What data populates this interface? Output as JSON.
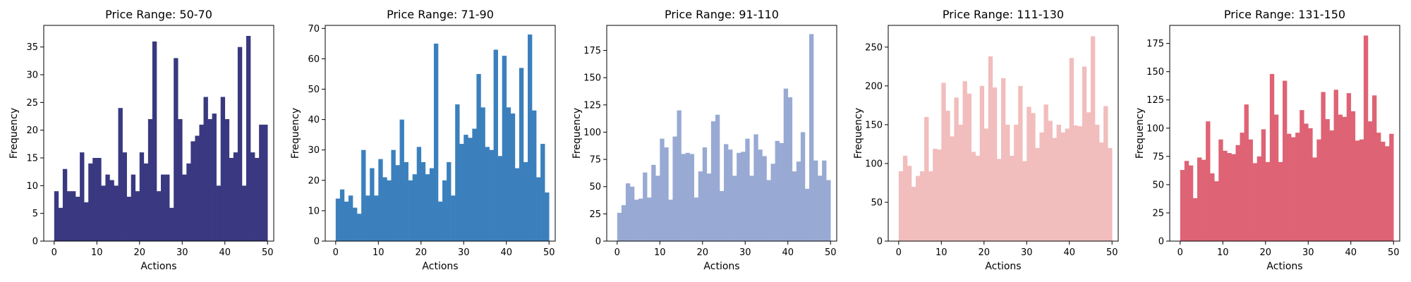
{
  "chart_data": [
    {
      "type": "bar",
      "title": "Price Range: 50-70",
      "xlabel": "Actions",
      "ylabel": "Frequency",
      "color": "#393880",
      "xlim": [
        -2.45,
        51.45
      ],
      "ylim": [
        0,
        38.9
      ],
      "xticks": [
        0,
        10,
        20,
        30,
        40,
        50
      ],
      "yticks": [
        0,
        5,
        10,
        15,
        20,
        25,
        30,
        35
      ],
      "bin_width": 1,
      "x": [
        0,
        1,
        2,
        3,
        4,
        5,
        6,
        7,
        8,
        9,
        10,
        11,
        12,
        13,
        14,
        15,
        16,
        17,
        18,
        19,
        20,
        21,
        22,
        23,
        24,
        25,
        26,
        27,
        28,
        29,
        30,
        31,
        32,
        33,
        34,
        35,
        36,
        37,
        38,
        39,
        40,
        41,
        42,
        43,
        44,
        45,
        46,
        47,
        48,
        49
      ],
      "values": [
        9,
        6,
        13,
        9,
        9,
        8,
        16,
        7,
        14,
        15,
        15,
        10,
        12,
        11,
        10,
        24,
        16,
        8,
        12,
        9,
        16,
        14,
        22,
        36,
        9,
        12,
        12,
        6,
        33,
        22,
        12,
        14,
        18,
        19,
        21,
        26,
        22,
        23,
        10,
        26,
        22,
        15,
        16,
        35,
        10,
        37,
        16,
        15,
        21,
        21
      ]
    },
    {
      "type": "bar",
      "title": "Price Range: 71-90",
      "xlabel": "Actions",
      "ylabel": "Frequency",
      "color": "#3b80bd",
      "xlim": [
        -2.45,
        51.45
      ],
      "ylim": [
        0,
        71
      ],
      "xticks": [
        0,
        10,
        20,
        30,
        40,
        50
      ],
      "yticks": [
        0,
        10,
        20,
        30,
        40,
        50,
        60,
        70
      ],
      "bin_width": 1,
      "x": [
        0,
        1,
        2,
        3,
        4,
        5,
        6,
        7,
        8,
        9,
        10,
        11,
        12,
        13,
        14,
        15,
        16,
        17,
        18,
        19,
        20,
        21,
        22,
        23,
        24,
        25,
        26,
        27,
        28,
        29,
        30,
        31,
        32,
        33,
        34,
        35,
        36,
        37,
        38,
        39,
        40,
        41,
        42,
        43,
        44,
        45,
        46,
        47,
        48,
        49
      ],
      "values": [
        14,
        17,
        13,
        15,
        11,
        9,
        30,
        15,
        24,
        15,
        27,
        21,
        20,
        30,
        25,
        40,
        26,
        20,
        22,
        31,
        26,
        22,
        24,
        65,
        13,
        20,
        26,
        15,
        45,
        32,
        35,
        34,
        37,
        55,
        44,
        31,
        30,
        63,
        28,
        61,
        44,
        42,
        24,
        57,
        26,
        68,
        43,
        21,
        32,
        16
      ]
    },
    {
      "type": "bar",
      "title": "Price Range: 91-110",
      "xlabel": "Actions",
      "ylabel": "Frequency",
      "color": "#98aad3",
      "xlim": [
        -2.45,
        51.45
      ],
      "ylim": [
        0,
        198
      ],
      "xticks": [
        0,
        10,
        20,
        30,
        40,
        50
      ],
      "yticks": [
        0,
        25,
        50,
        75,
        100,
        125,
        150,
        175
      ],
      "bin_width": 1,
      "x": [
        0,
        1,
        2,
        3,
        4,
        5,
        6,
        7,
        8,
        9,
        10,
        11,
        12,
        13,
        14,
        15,
        16,
        17,
        18,
        19,
        20,
        21,
        22,
        23,
        24,
        25,
        26,
        27,
        28,
        29,
        30,
        31,
        32,
        33,
        34,
        35,
        36,
        37,
        38,
        39,
        40,
        41,
        42,
        43,
        44,
        45,
        46,
        47,
        48,
        49
      ],
      "values": [
        26,
        33,
        53,
        50,
        38,
        39,
        63,
        40,
        70,
        60,
        94,
        86,
        38,
        96,
        120,
        80,
        81,
        80,
        40,
        64,
        86,
        62,
        110,
        116,
        46,
        89,
        84,
        60,
        81,
        82,
        94,
        60,
        98,
        84,
        78,
        56,
        71,
        92,
        90,
        140,
        132,
        64,
        73,
        100,
        48,
        190,
        74,
        60,
        74,
        56
      ]
    },
    {
      "type": "bar",
      "title": "Price Range: 111-130",
      "xlabel": "Actions",
      "ylabel": "Frequency",
      "color": "#f2bdbd",
      "xlim": [
        -2.45,
        51.45
      ],
      "ylim": [
        0,
        278
      ],
      "xticks": [
        0,
        10,
        20,
        30,
        40,
        50
      ],
      "yticks": [
        0,
        50,
        100,
        150,
        200,
        250
      ],
      "bin_width": 1,
      "x": [
        0,
        1,
        2,
        3,
        4,
        5,
        6,
        7,
        8,
        9,
        10,
        11,
        12,
        13,
        14,
        15,
        16,
        17,
        18,
        19,
        20,
        21,
        22,
        23,
        24,
        25,
        26,
        27,
        28,
        29,
        30,
        31,
        32,
        33,
        34,
        35,
        36,
        37,
        38,
        39,
        40,
        41,
        42,
        43,
        44,
        45,
        46,
        47,
        48,
        49
      ],
      "values": [
        90,
        110,
        97,
        70,
        84,
        90,
        160,
        90,
        119,
        118,
        204,
        168,
        135,
        185,
        150,
        206,
        190,
        115,
        110,
        200,
        145,
        238,
        198,
        106,
        210,
        150,
        110,
        150,
        200,
        103,
        173,
        165,
        120,
        140,
        176,
        155,
        133,
        150,
        140,
        145,
        236,
        149,
        148,
        225,
        166,
        264,
        150,
        127,
        174,
        120
      ]
    },
    {
      "type": "bar",
      "title": "Price Range: 131-150",
      "xlabel": "Actions",
      "ylabel": "Frequency",
      "color": "#de6374",
      "xlim": [
        -2.45,
        51.45
      ],
      "ylim": [
        0,
        191
      ],
      "xticks": [
        0,
        10,
        20,
        30,
        40,
        50
      ],
      "yticks": [
        0,
        25,
        50,
        75,
        100,
        125,
        150,
        175
      ],
      "bin_width": 1,
      "x": [
        0,
        1,
        2,
        3,
        4,
        5,
        6,
        7,
        8,
        9,
        10,
        11,
        12,
        13,
        14,
        15,
        16,
        17,
        18,
        19,
        20,
        21,
        22,
        23,
        24,
        25,
        26,
        27,
        28,
        29,
        30,
        31,
        32,
        33,
        34,
        35,
        36,
        37,
        38,
        39,
        40,
        41,
        42,
        43,
        44,
        45,
        46,
        47,
        48,
        49
      ],
      "values": [
        63,
        71,
        67,
        38,
        74,
        72,
        106,
        60,
        53,
        90,
        80,
        78,
        77,
        85,
        96,
        121,
        90,
        69,
        75,
        99,
        70,
        148,
        112,
        70,
        142,
        95,
        92,
        96,
        116,
        104,
        100,
        74,
        90,
        132,
        108,
        98,
        134,
        112,
        110,
        131,
        115,
        89,
        90,
        182,
        106,
        129,
        96,
        88,
        84,
        95
      ]
    }
  ]
}
